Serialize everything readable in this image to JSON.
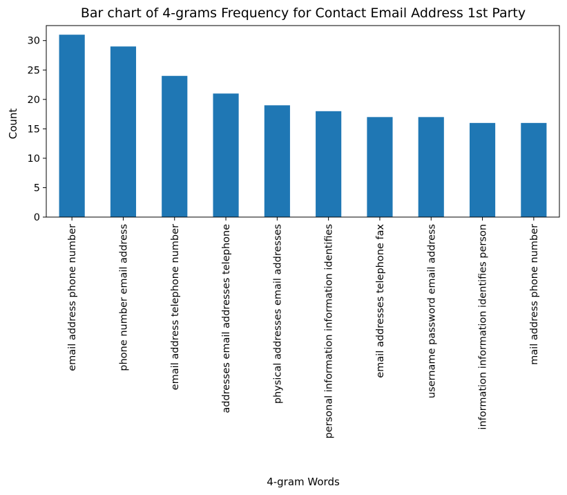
{
  "chart_data": {
    "type": "bar",
    "title": "Bar chart of 4-grams Frequency for Contact Email Address 1st Party",
    "xlabel": "4-gram Words",
    "ylabel": "Count",
    "categories": [
      "email address phone number",
      "phone number email address",
      "email address telephone number",
      "addresses email addresses telephone",
      "physical addresses email addresses",
      "personal information information identifies",
      "email addresses telephone fax",
      "username password email address",
      "information information identifies person",
      "mail address phone number"
    ],
    "values": [
      31,
      29,
      24,
      21,
      19,
      18,
      17,
      17,
      16,
      16
    ],
    "ylim": [
      0,
      32.55
    ],
    "yticks": [
      0,
      5,
      10,
      15,
      20,
      25,
      30
    ],
    "grid": false,
    "legend": "none",
    "bar_color": "#1f77b4"
  }
}
